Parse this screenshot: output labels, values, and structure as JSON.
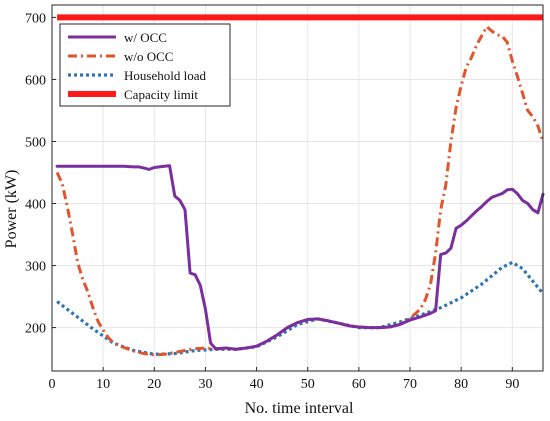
{
  "chart_data": {
    "type": "line",
    "title": "",
    "xlabel": "No. time interval",
    "ylabel": "Power (kW)",
    "xlim": [
      0,
      96
    ],
    "ylim": [
      130,
      720
    ],
    "xticks": [
      0,
      10,
      20,
      30,
      40,
      50,
      60,
      70,
      80,
      90
    ],
    "yticks": [
      200,
      300,
      400,
      500,
      600,
      700
    ],
    "grid": true,
    "legend_position": "top-left",
    "series": [
      {
        "name": "w/ OCC",
        "color": "#7b2f9e",
        "style": "solid",
        "x": [
          1,
          12,
          14,
          16,
          17,
          18,
          19,
          20,
          21,
          22,
          23,
          24,
          25,
          26,
          27,
          28,
          29,
          30,
          31,
          32,
          34,
          36,
          38,
          40,
          42,
          44,
          46,
          48,
          50,
          52,
          54,
          56,
          58,
          60,
          62,
          64,
          66,
          68,
          70,
          72,
          74,
          75,
          76,
          77,
          78,
          79,
          80,
          81,
          82,
          83,
          84,
          85,
          86,
          87,
          88,
          89,
          90,
          91,
          92,
          93,
          94,
          95,
          96
        ],
        "values": [
          460,
          460,
          460,
          459,
          459,
          457,
          455,
          458,
          459,
          460,
          461,
          412,
          405,
          390,
          288,
          285,
          268,
          230,
          175,
          166,
          167,
          165,
          167,
          170,
          178,
          188,
          200,
          208,
          213,
          214,
          211,
          207,
          203,
          201,
          200,
          200,
          201,
          205,
          212,
          217,
          223,
          227,
          318,
          320,
          328,
          360,
          365,
          372,
          380,
          388,
          395,
          403,
          410,
          413,
          416,
          422,
          423,
          416,
          405,
          400,
          390,
          385,
          415
        ]
      },
      {
        "name": "w/o OCC",
        "color": "#e0552a",
        "style": "dashdot",
        "x": [
          1,
          2,
          3,
          4,
          5,
          6,
          7,
          8,
          9,
          10,
          11,
          12,
          14,
          16,
          18,
          20,
          22,
          24,
          26,
          28,
          30,
          32,
          34,
          36,
          38,
          40,
          42,
          44,
          46,
          48,
          50,
          52,
          54,
          56,
          58,
          60,
          62,
          64,
          66,
          68,
          70,
          71,
          72,
          73,
          74,
          75,
          76,
          77,
          78,
          79,
          80,
          81,
          82,
          83,
          84,
          85,
          86,
          87,
          88,
          89,
          90,
          91,
          92,
          93,
          94,
          95,
          96
        ],
        "values": [
          450,
          432,
          395,
          352,
          305,
          278,
          258,
          232,
          210,
          196,
          184,
          175,
          168,
          162,
          158,
          156,
          157,
          160,
          163,
          166,
          167,
          166,
          166,
          165,
          167,
          170,
          178,
          188,
          200,
          208,
          213,
          214,
          211,
          207,
          203,
          201,
          200,
          200,
          201,
          205,
          215,
          222,
          230,
          245,
          270,
          320,
          390,
          430,
          500,
          555,
          590,
          620,
          635,
          655,
          670,
          685,
          678,
          672,
          670,
          660,
          630,
          605,
          578,
          550,
          540,
          525,
          500
        ]
      },
      {
        "name": "Household load",
        "color": "#2e75b6",
        "style": "dotted",
        "x": [
          1,
          4,
          8,
          12,
          16,
          20,
          24,
          28,
          32,
          36,
          40,
          44,
          48,
          52,
          56,
          60,
          64,
          68,
          72,
          76,
          80,
          84,
          88,
          90,
          92,
          94,
          96
        ],
        "values": [
          242,
          223,
          198,
          175,
          163,
          157,
          158,
          163,
          165,
          165,
          169,
          185,
          205,
          214,
          207,
          200,
          200,
          209,
          220,
          232,
          248,
          270,
          297,
          305,
          295,
          275,
          255
        ]
      },
      {
        "name": "Capacity limit",
        "color": "#ff1a1a",
        "style": "solid",
        "x": [
          1,
          96
        ],
        "values": [
          700,
          700
        ]
      }
    ]
  }
}
